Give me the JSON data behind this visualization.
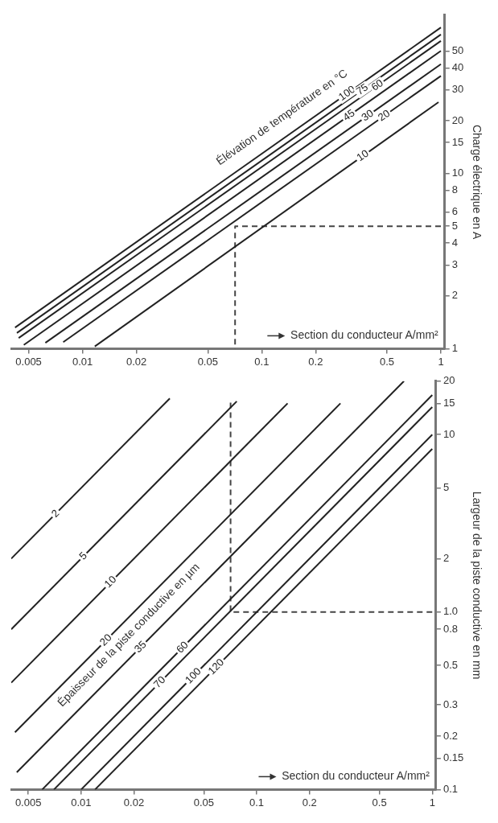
{
  "chart_data": [
    {
      "type": "line",
      "xlabel": "Section du conducteur A/mm²",
      "ylabel": "Charge électrique en A",
      "annotations": [
        "Élévation de température en °C"
      ],
      "log": "xy",
      "marker": "none",
      "line_style": "solid",
      "xlim": [
        0.004,
        1.05
      ],
      "xticks": [
        0.005,
        0.01,
        0.02,
        0.05,
        0.1,
        0.2,
        0.5,
        1
      ],
      "ylim": [
        1,
        80
      ],
      "yticks": [
        1,
        2,
        3,
        4,
        5,
        6,
        8,
        10,
        15,
        20,
        30,
        40,
        50
      ],
      "series": [
        {
          "name": "100",
          "color": "#222222",
          "x": [
            0.0042,
            1
          ],
          "values": [
            1.32,
            68
          ]
        },
        {
          "name": "75",
          "color": "#222222",
          "x": [
            0.0043,
            1
          ],
          "values": [
            1.23,
            62
          ]
        },
        {
          "name": "60",
          "color": "#222222",
          "x": [
            0.0044,
            1
          ],
          "values": [
            1.15,
            57
          ]
        },
        {
          "name": "45",
          "color": "#222222",
          "x": [
            0.0047,
            1
          ],
          "values": [
            1.05,
            50
          ]
        },
        {
          "name": "30",
          "color": "#222222",
          "x": [
            0.0062,
            1
          ],
          "values": [
            1.08,
            42
          ]
        },
        {
          "name": "20",
          "color": "#222222",
          "x": [
            0.0078,
            1
          ],
          "values": [
            1.09,
            36
          ]
        },
        {
          "name": "10",
          "color": "#222222",
          "x": [
            0.0117,
            0.97
          ],
          "values": [
            1.03,
            25.5
          ]
        },
        {
          "color": "#444444",
          "line_style": "dashed",
          "x": [
            1,
            0.071,
            0.071
          ],
          "values": [
            5,
            5,
            1
          ]
        }
      ]
    },
    {
      "type": "line",
      "xlabel": "Section du conducteur A/mm²",
      "ylabel": "Largeur de la piste conductive en mm",
      "annotations": [
        "Épaisseur de la piste conductive en µm"
      ],
      "log": "xy",
      "marker": "none",
      "line_style": "solid",
      "xlim": [
        0.004,
        1.05
      ],
      "xticks": [
        0.005,
        0.01,
        0.02,
        0.05,
        0.1,
        0.2,
        0.5,
        1
      ],
      "ylim": [
        0.1,
        20
      ],
      "yticks": [
        0.1,
        0.15,
        0.2,
        0.3,
        0.5,
        0.8,
        {
          "value": 1,
          "label": "1.0"
        },
        2,
        5,
        10,
        15,
        20
      ],
      "series": [
        {
          "name": "2",
          "color": "#222222",
          "x": [
            0.004,
            0.032
          ],
          "values": [
            2,
            16
          ]
        },
        {
          "name": "5",
          "color": "#222222",
          "x": [
            0.004,
            0.077
          ],
          "values": [
            0.8,
            15.4
          ]
        },
        {
          "name": "10",
          "color": "#222222",
          "x": [
            0.004,
            0.15
          ],
          "values": [
            0.4,
            15
          ]
        },
        {
          "name": "20",
          "color": "#222222",
          "x": [
            0.0042,
            0.3
          ],
          "values": [
            0.21,
            15
          ]
        },
        {
          "name": "35",
          "color": "#222222",
          "x": [
            0.0043,
            0.69
          ],
          "values": [
            0.125,
            20
          ]
        },
        {
          "name": "60",
          "color": "#222222",
          "x": [
            0.006,
            1
          ],
          "values": [
            0.1,
            16.7
          ]
        },
        {
          "name": "70",
          "color": "#222222",
          "x": [
            0.007,
            1
          ],
          "values": [
            0.1,
            14.3
          ]
        },
        {
          "name": "100",
          "color": "#222222",
          "x": [
            0.01,
            1
          ],
          "values": [
            0.1,
            10
          ]
        },
        {
          "name": "120",
          "color": "#222222",
          "x": [
            0.012,
            1
          ],
          "values": [
            0.1,
            8.3
          ]
        },
        {
          "color": "#444444",
          "line_style": "dashed",
          "x": [
            1,
            0.071,
            0.071
          ],
          "values": [
            1,
            1,
            15.5
          ]
        }
      ]
    }
  ]
}
